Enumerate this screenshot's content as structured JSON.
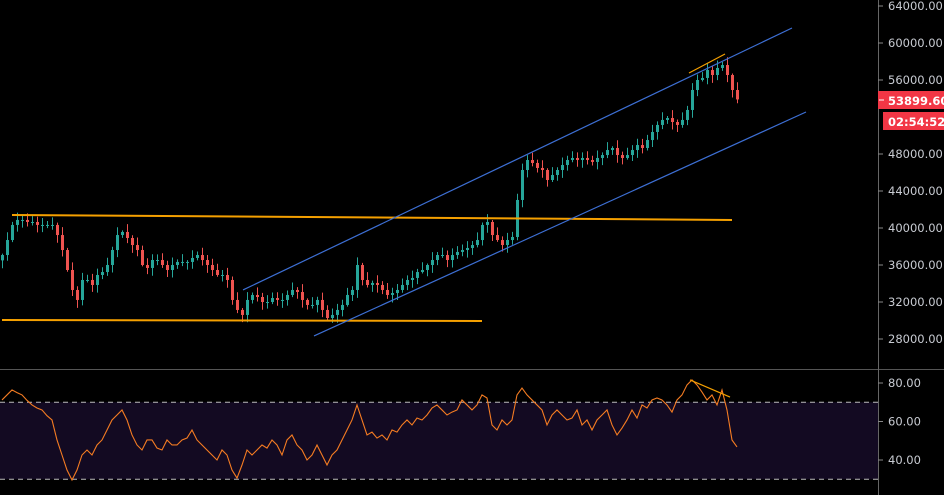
{
  "colors": {
    "background": "#000000",
    "up": "#26a69a",
    "down": "#ef5350",
    "channel": "#3d6fd4",
    "horizontal_levels": "#f5a000",
    "rsi_line": "#f57c22",
    "rsi_band": "#130a22",
    "price_badge": "#f23645",
    "axis_text": "#c8cbd2"
  },
  "price_badge": {
    "value": "53899.60",
    "countdown": "02:54:52"
  },
  "chart_data": [
    {
      "type": "candlestick",
      "title": "",
      "x_unit": "bar index",
      "ylim": [
        24000,
        65000
      ],
      "y_ticks": [
        "64000.00",
        "60000.00",
        "56000.00",
        "48000.00",
        "44000.00",
        "40000.00",
        "36000.00",
        "32000.00",
        "28000.00"
      ],
      "y_tick_values": [
        64000,
        60000,
        56000,
        48000,
        44000,
        40000,
        36000,
        32000,
        28000
      ],
      "grid": false,
      "first_open": 36500,
      "closes": [
        37080,
        38700,
        40330,
        40870,
        40870,
        40650,
        40650,
        40330,
        40330,
        40330,
        40330,
        39240,
        37620,
        35460,
        33300,
        32220,
        34380,
        34380,
        33840,
        34920,
        35240,
        36000,
        37620,
        39240,
        39570,
        38920,
        38160,
        37620,
        36000,
        35680,
        36540,
        36540,
        36000,
        35460,
        36000,
        36330,
        36330,
        36330,
        36760,
        37080,
        36540,
        36000,
        35460,
        34920,
        34920,
        34380,
        32220,
        31140,
        30600,
        32220,
        32760,
        32540,
        32000,
        32000,
        32430,
        32220,
        32220,
        32760,
        33300,
        33080,
        32220,
        31680,
        31680,
        32220,
        31140,
        30270,
        30600,
        31140,
        31680,
        32760,
        33300,
        36000,
        34380,
        33840,
        34060,
        33840,
        33300,
        32760,
        32970,
        33300,
        33840,
        34380,
        34600,
        35240,
        35460,
        36000,
        36540,
        37080,
        37080,
        36540,
        37080,
        37410,
        37620,
        37840,
        38160,
        38700,
        40330,
        40650,
        39240,
        38700,
        38160,
        38700,
        39030,
        43030,
        46270,
        47350,
        47030,
        46490,
        46270,
        45190,
        45730,
        46270,
        46810,
        47350,
        47570,
        47350,
        47570,
        47350,
        47140,
        47570,
        47890,
        48430,
        48650,
        47890,
        47570,
        47890,
        48430,
        48970,
        48650,
        49510,
        50380,
        51140,
        51680,
        51890,
        51460,
        51140,
        51680,
        52760,
        54920,
        56000,
        56220,
        57080,
        56540,
        57300,
        57620,
        56540,
        54920,
        53900
      ],
      "drawings": [
        {
          "kind": "horizontal-resistance",
          "color": "#f5a000",
          "from": [
            2,
            41410
          ],
          "to": [
            146,
            40870
          ]
        },
        {
          "kind": "horizontal-support",
          "color": "#f5a000",
          "from": [
            0,
            30060
          ],
          "to": [
            96,
            29950
          ]
        },
        {
          "kind": "channel-upper",
          "color": "#3d6fd4",
          "from": [
            48.2,
            33300
          ],
          "to": [
            158,
            61620
          ]
        },
        {
          "kind": "channel-lower",
          "color": "#3d6fd4",
          "from": [
            62.4,
            28330
          ],
          "to": [
            160.8,
            52540
          ]
        },
        {
          "kind": "divergence-highs",
          "color": "#f5a000",
          "from": [
            137.4,
            56760
          ],
          "to": [
            144.6,
            58810
          ]
        }
      ]
    },
    {
      "type": "line",
      "title": "",
      "ylim": [
        25,
        85
      ],
      "y_ticks": [
        "80.00",
        "60.00",
        "40.00"
      ],
      "y_tick_values": [
        80,
        60,
        40
      ],
      "bands": [
        70,
        30
      ],
      "values": [
        71.2,
        73.8,
        76.4,
        75,
        73.8,
        71,
        68.6,
        67,
        66,
        63,
        60.8,
        50.4,
        42.6,
        34.8,
        29.6,
        34.8,
        42.6,
        45.2,
        42.6,
        47.8,
        50.4,
        55.6,
        60.8,
        63.4,
        66,
        60.8,
        53,
        47.8,
        45.2,
        50.4,
        50.4,
        46.2,
        45.2,
        50.4,
        47.8,
        47.8,
        50.4,
        51.4,
        55.6,
        50.4,
        47.8,
        45.2,
        42.6,
        40,
        45.2,
        42.6,
        34.8,
        30.6,
        37.4,
        45.2,
        42.6,
        45.2,
        47.8,
        46.2,
        50.4,
        47.8,
        42.6,
        50.4,
        53,
        47.8,
        45.2,
        40,
        42.6,
        47.8,
        42.6,
        37.4,
        42.6,
        45.2,
        50.4,
        55.6,
        60.8,
        68.6,
        60.8,
        53,
        54.5,
        51.4,
        53,
        50.4,
        55.6,
        54.5,
        58.2,
        60.8,
        58.2,
        61.8,
        60.8,
        63.4,
        67,
        68.6,
        66,
        63.4,
        64.9,
        66,
        71.2,
        68.6,
        66,
        68.6,
        73.8,
        72.2,
        58.2,
        55.6,
        60.8,
        58.2,
        60.8,
        73.8,
        77.4,
        73.8,
        71.2,
        68.6,
        66,
        58.2,
        63.4,
        66,
        63.4,
        60.8,
        61.8,
        66,
        58.2,
        60.8,
        55.6,
        60.8,
        63.4,
        66,
        58.2,
        53,
        56.6,
        60.8,
        66,
        61.8,
        68.6,
        67,
        71.2,
        72.2,
        71.2,
        68.6,
        64.9,
        71.2,
        73.8,
        79,
        81.6,
        79,
        75.3,
        71.2,
        73.8,
        68.6,
        76.4,
        66,
        50.4,
        46.8
      ],
      "drawings": [
        {
          "kind": "divergence-line",
          "color": "#f5a000",
          "from": [
            137.6,
            81.6
          ],
          "to": [
            145.6,
            72.7
          ]
        }
      ]
    }
  ]
}
